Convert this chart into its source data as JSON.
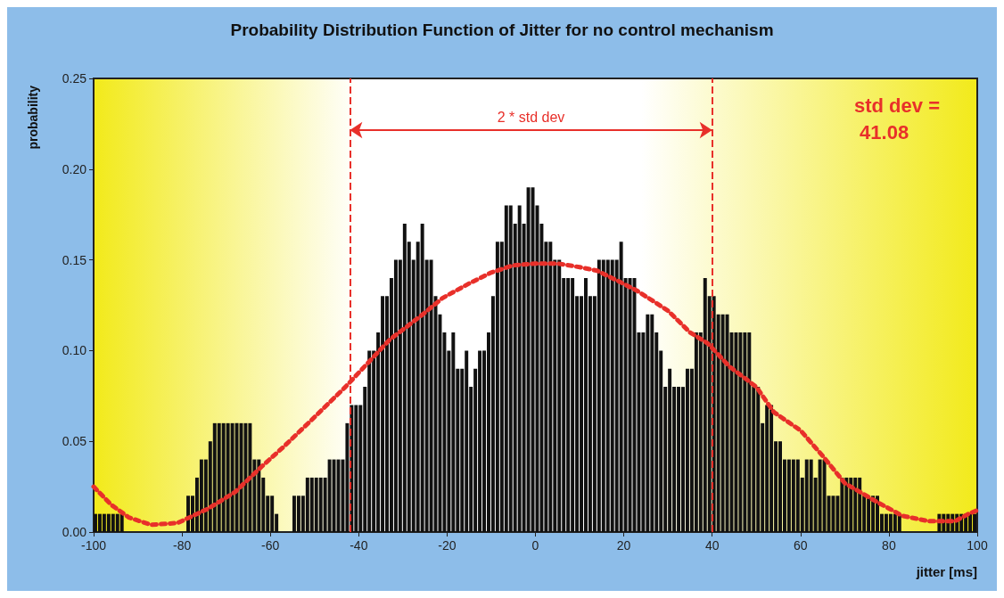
{
  "chart_data": {
    "type": "histogram",
    "title": "Probability Distribution Function of Jitter for no control mechanism",
    "xlabel": "jitter [ms]",
    "ylabel": "probability",
    "color": "#111111",
    "bins": [
      -100,
      -99,
      -98,
      -97,
      -96,
      -95,
      -94,
      -93,
      -92,
      -91,
      -90,
      -89,
      -88,
      -87,
      -86,
      -85,
      -84,
      -83,
      -82,
      -81,
      -80,
      -79,
      -78,
      -77,
      -76,
      -75,
      -74,
      -73,
      -72,
      -71,
      -70,
      -69,
      -68,
      -67,
      -66,
      -65,
      -64,
      -63,
      -62,
      -61,
      -60,
      -59,
      -58,
      -57,
      -56,
      -55,
      -54,
      -53,
      -52,
      -51,
      -50,
      -49,
      -48,
      -47,
      -46,
      -45,
      -44,
      -43,
      -42,
      -41,
      -40,
      -39,
      -38,
      -37,
      -36,
      -35,
      -34,
      -33,
      -32,
      -31,
      -30,
      -29,
      -28,
      -27,
      -26,
      -25,
      -24,
      -23,
      -22,
      -21,
      -20,
      -19,
      -18,
      -17,
      -16,
      -15,
      -14,
      -13,
      -12,
      -11,
      -10,
      -9,
      -8,
      -7,
      -6,
      -5,
      -4,
      -3,
      -2,
      -1,
      0,
      1,
      2,
      3,
      4,
      5,
      6,
      7,
      8,
      9,
      10,
      11,
      12,
      13,
      14,
      15,
      16,
      17,
      18,
      19,
      20,
      21,
      22,
      23,
      24,
      25,
      26,
      27,
      28,
      29,
      30,
      31,
      32,
      33,
      34,
      35,
      36,
      37,
      38,
      39,
      40,
      41,
      42,
      43,
      44,
      45,
      46,
      47,
      48,
      49,
      50,
      51,
      52,
      53,
      54,
      55,
      56,
      57,
      58,
      59,
      60,
      61,
      62,
      63,
      64,
      65,
      66,
      67,
      68,
      69,
      70,
      71,
      72,
      73,
      74,
      75,
      76,
      77,
      78,
      79,
      80,
      81,
      82,
      83,
      84,
      85,
      86,
      87,
      88,
      89,
      90,
      91,
      92,
      93,
      94,
      95,
      96,
      97,
      98,
      99,
      100
    ],
    "values": [
      0.01,
      0.01,
      0.01,
      0.01,
      0.01,
      0.01,
      0.01,
      0,
      0,
      0,
      0,
      0,
      0,
      0,
      0,
      0,
      0,
      0,
      0,
      0,
      0,
      0.02,
      0.02,
      0.03,
      0.04,
      0.04,
      0.05,
      0.06,
      0.06,
      0.06,
      0.06,
      0.06,
      0.06,
      0.06,
      0.06,
      0.06,
      0.04,
      0.04,
      0.03,
      0.02,
      0.02,
      0.01,
      0,
      0,
      0,
      0.02,
      0.02,
      0.02,
      0.03,
      0.03,
      0.03,
      0.03,
      0.03,
      0.04,
      0.04,
      0.04,
      0.04,
      0.06,
      0.07,
      0.07,
      0.07,
      0.08,
      0.1,
      0.1,
      0.11,
      0.13,
      0.13,
      0.14,
      0.15,
      0.15,
      0.17,
      0.16,
      0.15,
      0.16,
      0.17,
      0.15,
      0.15,
      0.13,
      0.12,
      0.11,
      0.1,
      0.11,
      0.09,
      0.09,
      0.1,
      0.08,
      0.09,
      0.1,
      0.1,
      0.11,
      0.13,
      0.16,
      0.16,
      0.18,
      0.18,
      0.17,
      0.18,
      0.17,
      0.19,
      0.19,
      0.18,
      0.17,
      0.16,
      0.16,
      0.15,
      0.15,
      0.14,
      0.14,
      0.14,
      0.13,
      0.13,
      0.14,
      0.13,
      0.13,
      0.15,
      0.15,
      0.15,
      0.15,
      0.15,
      0.16,
      0.14,
      0.14,
      0.14,
      0.11,
      0.11,
      0.12,
      0.12,
      0.11,
      0.1,
      0.08,
      0.09,
      0.08,
      0.08,
      0.08,
      0.09,
      0.09,
      0.11,
      0.11,
      0.14,
      0.13,
      0.13,
      0.12,
      0.12,
      0.12,
      0.11,
      0.11,
      0.11,
      0.11,
      0.11,
      0.08,
      0.08,
      0.06,
      0.07,
      0.07,
      0.05,
      0.05,
      0.04,
      0.04,
      0.04,
      0.04,
      0.03,
      0.04,
      0.04,
      0.03,
      0.04,
      0.04,
      0.02,
      0.02,
      0.02,
      0.03,
      0.03,
      0.03,
      0.03,
      0.03,
      0.02,
      0.02,
      0.02,
      0.02,
      0.01,
      0.01,
      0.01,
      0.01,
      0.01,
      0,
      0,
      0,
      0,
      0,
      0,
      0,
      0,
      0.01,
      0.01,
      0.01,
      0.01,
      0.01,
      0.01,
      0.01,
      0.01,
      0.01
    ],
    "series": [
      {
        "type": "line",
        "color": "#e8302a",
        "line_style": "dotted",
        "marker": "none",
        "x": [
          -100,
          -96,
          -92,
          -87,
          -81,
          -74,
          -68,
          -62,
          -57,
          -51,
          -43,
          -38,
          -33,
          -26,
          -21,
          -15,
          -10,
          -5,
          0,
          5,
          10,
          14,
          19,
          23,
          30,
          35,
          39,
          44,
          50,
          54,
          60,
          65,
          70,
          77,
          83,
          89,
          95,
          98,
          100
        ],
        "values": [
          0.025,
          0.015,
          0.008,
          0.004,
          0.005,
          0.013,
          0.022,
          0.036,
          0.047,
          0.061,
          0.08,
          0.093,
          0.106,
          0.119,
          0.129,
          0.137,
          0.143,
          0.147,
          0.148,
          0.148,
          0.146,
          0.144,
          0.138,
          0.133,
          0.122,
          0.11,
          0.104,
          0.091,
          0.08,
          0.066,
          0.056,
          0.042,
          0.027,
          0.017,
          0.009,
          0.006,
          0.006,
          0.01,
          0.012
        ]
      }
    ],
    "ref_lines": [
      {
        "axis": "x",
        "value": -42,
        "color": "#e8302a",
        "line_style": "dashed"
      },
      {
        "axis": "x",
        "value": 40,
        "color": "#e8302a",
        "line_style": "dashed"
      }
    ],
    "annotations": [
      "2 * std dev",
      "std dev = 41.08"
    ],
    "xlim": [
      -100,
      100
    ],
    "xticks": [
      -100,
      -80,
      -60,
      -40,
      -20,
      0,
      20,
      40,
      60,
      80,
      100
    ],
    "ylim": [
      0,
      0.25
    ],
    "yticks": [
      {
        "value": 0,
        "label": "0.00"
      },
      {
        "value": 0.05,
        "label": "0.05"
      },
      {
        "value": 0.1,
        "label": "0.10"
      },
      {
        "value": 0.15,
        "label": "0.15"
      },
      {
        "value": 0.2,
        "label": "0.20"
      },
      {
        "value": 0.25,
        "label": "0.25"
      }
    ],
    "grid": false
  }
}
